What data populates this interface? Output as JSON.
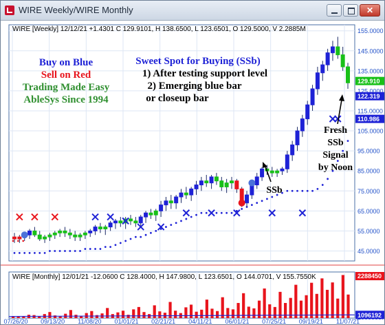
{
  "window": {
    "title": "WIRE Weekly/WIRE Monthly",
    "icon": "app-logo-icon"
  },
  "colors": {
    "up": "#1e22d6",
    "down": "#e8141c",
    "neutral": "#18c018",
    "axis_labels": "#2050c8",
    "support_dots": "#1e22d6",
    "x_marker": "#1e22d6"
  },
  "weekly": {
    "header": "WIRE [Weekly] 12/12/21 +1.4301 C 129.9101, H 138.6500, L 123.6501, O 129.5000, V 2.2885M",
    "price_axis": [
      "155.0000",
      "145.0000",
      "135.0000",
      "125.0000",
      "115.0000",
      "105.0000",
      "95.0000",
      "85.0000",
      "75.0000",
      "65.0000",
      "55.0000",
      "45.0000"
    ],
    "price_labels": [
      {
        "text": "129.910",
        "bg": "#18c018"
      },
      {
        "text": "122.319",
        "bg": "#1e22d6"
      },
      {
        "text": "110.986",
        "bg": "#1e22d6"
      }
    ]
  },
  "monthly": {
    "header": "WIRE [Monthly] 12/01/21 -12.0600 C 128.4000, H 147.9800, L 123.6501, O 144.0701, V 155.7550K",
    "volume_axis": [
      "1000000.0",
      "2288450",
      "1096192"
    ]
  },
  "x_axis": [
    "07/26/20",
    "09/13/20",
    "11/08/20",
    "01/01/21",
    "02/21/21",
    "04/11/21",
    "06/01/21",
    "07/25/21",
    "09/19/21",
    "11/07/21"
  ],
  "annotations": {
    "left_lines": [
      {
        "text": "Buy on Blue",
        "color": "#1e22d6"
      },
      {
        "text": "Sell on Red",
        "color": "#e8141c"
      },
      {
        "text": "Trading Made Easy",
        "color": "#2f8f2f"
      },
      {
        "text": "AbleSys Since 1994",
        "color": "#2f8f2f"
      }
    ],
    "sweet_spot_title": "Sweet Spot for Buying (SSb)",
    "sweet_spot_1": "1) After testing support level",
    "sweet_spot_2": "2) Emerging blue bar",
    "sweet_spot_3": "or closeup bar",
    "ssb_label": "SSb",
    "fresh_lines": [
      "Fresh",
      "SSb",
      "Signal",
      "by Noon"
    ]
  },
  "chart_data": [
    {
      "type": "bar",
      "title": "WIRE [Weekly] 12/12/21 +1.4301 C 129.9101, H 138.6500, L 123.6501, O 129.5000, V 2.2885M",
      "ylim": [
        40,
        158
      ],
      "ohlc": [
        [
          52,
          54,
          49,
          51,
          "d"
        ],
        [
          51,
          53,
          49,
          52,
          "d"
        ],
        [
          52,
          54,
          50,
          53,
          "u"
        ],
        [
          53,
          56,
          51,
          55,
          "u"
        ],
        [
          55,
          57,
          52,
          53,
          "n"
        ],
        [
          53,
          55,
          50,
          51,
          "n"
        ],
        [
          51,
          53,
          49,
          52,
          "n"
        ],
        [
          52,
          54,
          50,
          53,
          "n"
        ],
        [
          53,
          55,
          51,
          54,
          "n"
        ],
        [
          54,
          56,
          52,
          55,
          "n"
        ],
        [
          55,
          57,
          52,
          54,
          "n"
        ],
        [
          54,
          56,
          51,
          53,
          "n"
        ],
        [
          53,
          55,
          50,
          52,
          "n"
        ],
        [
          52,
          54,
          50,
          53,
          "n"
        ],
        [
          53,
          55,
          51,
          54,
          "n"
        ],
        [
          54,
          56,
          52,
          55,
          "u"
        ],
        [
          55,
          58,
          53,
          57,
          "u"
        ],
        [
          57,
          59,
          54,
          56,
          "n"
        ],
        [
          56,
          58,
          53,
          57,
          "n"
        ],
        [
          57,
          60,
          55,
          59,
          "u"
        ],
        [
          59,
          61,
          56,
          60,
          "u"
        ],
        [
          60,
          62,
          57,
          59,
          "n"
        ],
        [
          59,
          62,
          56,
          61,
          "n"
        ],
        [
          61,
          63,
          58,
          60,
          "n"
        ],
        [
          60,
          62,
          57,
          59,
          "n"
        ],
        [
          59,
          63,
          57,
          62,
          "u"
        ],
        [
          62,
          65,
          59,
          64,
          "u"
        ],
        [
          64,
          66,
          61,
          63,
          "n"
        ],
        [
          63,
          66,
          60,
          65,
          "n"
        ],
        [
          65,
          70,
          62,
          68,
          "u"
        ],
        [
          68,
          72,
          65,
          70,
          "u"
        ],
        [
          70,
          73,
          66,
          69,
          "n"
        ],
        [
          69,
          73,
          66,
          72,
          "u"
        ],
        [
          72,
          76,
          69,
          74,
          "u"
        ],
        [
          74,
          77,
          71,
          73,
          "n"
        ],
        [
          73,
          77,
          70,
          76,
          "u"
        ],
        [
          76,
          80,
          73,
          78,
          "u"
        ],
        [
          78,
          82,
          75,
          80,
          "u"
        ],
        [
          80,
          83,
          77,
          79,
          "n"
        ],
        [
          79,
          83,
          76,
          82,
          "u"
        ],
        [
          82,
          84,
          78,
          80,
          "n"
        ],
        [
          80,
          82,
          75,
          77,
          "n"
        ],
        [
          77,
          81,
          74,
          79,
          "n"
        ],
        [
          79,
          82,
          76,
          80,
          "n"
        ],
        [
          80,
          81,
          74,
          76,
          "d"
        ],
        [
          76,
          77,
          67,
          69,
          "d"
        ],
        [
          69,
          75,
          67,
          73,
          "u"
        ],
        [
          73,
          80,
          71,
          78,
          "u"
        ],
        [
          78,
          84,
          76,
          82,
          "u"
        ],
        [
          82,
          87,
          80,
          86,
          "u"
        ],
        [
          86,
          88,
          83,
          85,
          "n"
        ],
        [
          85,
          87,
          82,
          84,
          "n"
        ],
        [
          84,
          86,
          82,
          85,
          "n"
        ],
        [
          85,
          87,
          83,
          86,
          "u"
        ],
        [
          86,
          95,
          84,
          93,
          "u"
        ],
        [
          93,
          100,
          90,
          98,
          "u"
        ],
        [
          98,
          107,
          95,
          105,
          "u"
        ],
        [
          105,
          113,
          102,
          111,
          "u"
        ],
        [
          111,
          120,
          108,
          118,
          "u"
        ],
        [
          118,
          128,
          115,
          126,
          "u"
        ],
        [
          126,
          137,
          123,
          134,
          "u"
        ],
        [
          134,
          140,
          130,
          138,
          "u"
        ],
        [
          138,
          146,
          135,
          144,
          "u"
        ],
        [
          144,
          150,
          140,
          147,
          "u"
        ],
        [
          147,
          152,
          141,
          143,
          "n"
        ],
        [
          143,
          147,
          135,
          137,
          "n"
        ],
        [
          137,
          139,
          126,
          129,
          "n"
        ]
      ],
      "support": [
        [
          44,
          44,
          44,
          44,
          44,
          44,
          44
        ],
        [
          45,
          45,
          45,
          45,
          45,
          45,
          45
        ],
        [
          46,
          46,
          46,
          46,
          47,
          47,
          48
        ],
        [
          49,
          50,
          51,
          52,
          52,
          53,
          54
        ],
        [
          55,
          56,
          57,
          58,
          59,
          60,
          61
        ],
        [
          62,
          63,
          64,
          64,
          64,
          64,
          64
        ],
        [
          64,
          64,
          65,
          66,
          67,
          68,
          69
        ],
        [
          70,
          71,
          72,
          73,
          74,
          75,
          75
        ],
        [
          75,
          75,
          75,
          75,
          76,
          78,
          81
        ],
        [
          85,
          90,
          95,
          100,
          104,
          108,
          112
        ],
        [
          115,
          118,
          121,
          122,
          122,
          122,
          122
        ]
      ],
      "x_markers": [
        [
          1,
          62
        ],
        [
          4,
          62
        ],
        [
          8,
          62
        ],
        [
          16,
          62
        ],
        [
          19,
          62
        ],
        [
          22,
          60
        ],
        [
          25,
          57
        ],
        [
          29,
          57
        ],
        [
          34,
          64
        ],
        [
          39,
          64
        ],
        [
          44,
          64
        ],
        [
          51,
          64
        ],
        [
          57,
          64
        ],
        [
          63,
          111
        ],
        [
          64,
          111
        ]
      ],
      "signals": [
        {
          "bar": 2,
          "price": 53,
          "kind": "buy"
        },
        {
          "bar": 45,
          "price": 69,
          "kind": "sell"
        },
        {
          "bar": 47,
          "price": 79,
          "kind": "buy"
        }
      ]
    },
    {
      "type": "bar",
      "title": "WIRE [Monthly] 12/01/21 -12.0600 C 128.4000, H 147.9800, L 123.6501, O 144.0701, V 155.7550K",
      "volume_scale": [
        1000000,
        2288450
      ],
      "volume": [
        1.05,
        1.04,
        1.06,
        1.1,
        1.09,
        1.06,
        1.12,
        1.18,
        1.08,
        1.05,
        1.13,
        1.24,
        1.1,
        1.07,
        1.15,
        1.21,
        1.09,
        1.14,
        1.3,
        1.12,
        1.17,
        1.22,
        1.1,
        1.26,
        1.33,
        1.18,
        1.12,
        1.38,
        1.2,
        1.16,
        1.48,
        1.22,
        1.15,
        1.32,
        1.4,
        1.19,
        1.25,
        1.55,
        1.28,
        1.21,
        1.62,
        1.3,
        1.26,
        1.45,
        1.74,
        1.34,
        1.29,
        1.52,
        1.88,
        1.41,
        1.33,
        1.78,
        1.45,
        1.6,
        1.99,
        1.52,
        1.68,
        2.05,
        1.72,
        2.18,
        1.84,
        2.06,
        1.58,
        2.28,
        1.7
      ],
      "ma_start": 1.05,
      "ma_end": 1.096
    }
  ]
}
